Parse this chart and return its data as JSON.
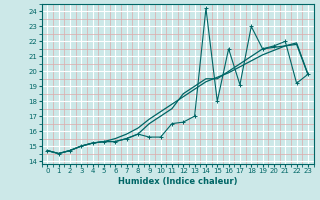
{
  "title": "",
  "xlabel": "Humidex (Indice chaleur)",
  "bg_color": "#cce8e8",
  "line_color": "#006666",
  "xlim": [
    -0.5,
    23.5
  ],
  "ylim": [
    13.8,
    24.5
  ],
  "xticks": [
    0,
    1,
    2,
    3,
    4,
    5,
    6,
    7,
    8,
    9,
    10,
    11,
    12,
    13,
    14,
    15,
    16,
    17,
    18,
    19,
    20,
    21,
    22,
    23
  ],
  "yticks": [
    14,
    15,
    16,
    17,
    18,
    19,
    20,
    21,
    22,
    23,
    24
  ],
  "data_x": [
    0,
    1,
    2,
    3,
    4,
    5,
    6,
    7,
    8,
    9,
    10,
    11,
    12,
    13,
    14,
    15,
    16,
    17,
    18,
    19,
    20,
    21,
    22,
    23
  ],
  "data_y1": [
    14.7,
    14.5,
    14.7,
    15.0,
    15.2,
    15.3,
    15.3,
    15.5,
    15.8,
    15.6,
    15.6,
    16.5,
    16.6,
    17.0,
    24.2,
    18.0,
    21.5,
    19.1,
    23.0,
    21.5,
    21.7,
    22.0,
    19.2,
    19.8
  ],
  "data_y2": [
    14.7,
    14.5,
    14.7,
    15.0,
    15.2,
    15.3,
    15.5,
    15.8,
    16.2,
    16.8,
    17.3,
    17.8,
    18.3,
    18.8,
    19.3,
    19.6,
    19.9,
    20.3,
    20.7,
    21.1,
    21.4,
    21.7,
    21.9,
    19.8
  ],
  "data_y3": [
    14.7,
    14.5,
    14.7,
    15.0,
    15.2,
    15.3,
    15.3,
    15.5,
    15.8,
    16.5,
    17.0,
    17.5,
    18.5,
    19.0,
    19.5,
    19.5,
    20.0,
    20.5,
    21.0,
    21.5,
    21.6,
    21.7,
    21.8,
    19.8
  ]
}
